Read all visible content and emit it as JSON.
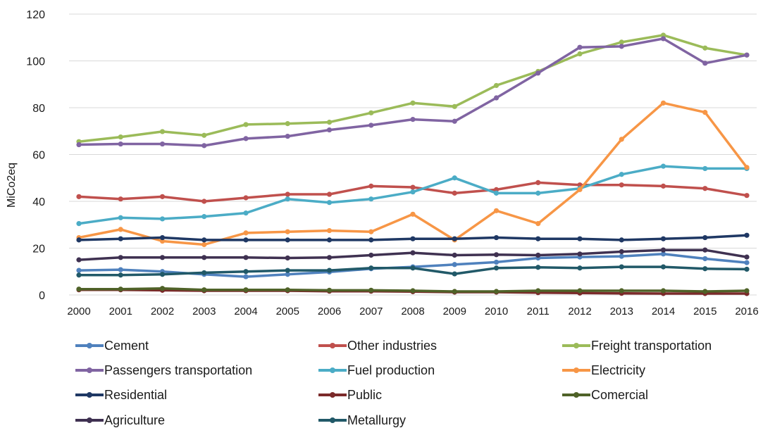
{
  "chart_data": {
    "type": "line",
    "title": "",
    "xlabel": "",
    "ylabel": "MiCo2eq",
    "ylim": [
      0,
      120
    ],
    "yticks": [
      0,
      20,
      40,
      60,
      80,
      100,
      120
    ],
    "grid": "horizontal",
    "legend_position": "bottom",
    "x": [
      "2000",
      "2001",
      "2002",
      "2003",
      "2004",
      "2005",
      "2006",
      "2007",
      "2008",
      "2009",
      "2010",
      "2011",
      "2012",
      "2013",
      "2014",
      "2015",
      "2016"
    ],
    "series": [
      {
        "name": "Cement",
        "color": "#4f81bd",
        "values": [
          10.5,
          10.8,
          10.0,
          8.8,
          7.8,
          8.8,
          9.8,
          11.2,
          12.0,
          13.0,
          14.0,
          15.8,
          16.2,
          16.5,
          17.5,
          15.5,
          13.8
        ]
      },
      {
        "name": "Other industries",
        "color": "#c0504d",
        "values": [
          42,
          41,
          42,
          40,
          41.5,
          43,
          43,
          46.5,
          46,
          43.5,
          45,
          48,
          47,
          47,
          46.5,
          45.5,
          42.5
        ]
      },
      {
        "name": "Freight transportation",
        "color": "#9bbb59",
        "values": [
          65.5,
          67.5,
          69.8,
          68.2,
          72.8,
          73.2,
          73.8,
          77.8,
          82,
          80.5,
          89.5,
          95.5,
          103,
          108,
          111,
          105.5,
          102.5
        ]
      },
      {
        "name": "Passengers transportation",
        "color": "#8064a2",
        "values": [
          64.2,
          64.5,
          64.5,
          63.8,
          66.8,
          67.8,
          70.5,
          72.5,
          75,
          74.2,
          84.2,
          94.8,
          105.8,
          106.2,
          109.5,
          99,
          102.5
        ]
      },
      {
        "name": "Fuel production",
        "color": "#4bacc6",
        "values": [
          30.5,
          33,
          32.5,
          33.5,
          35,
          41,
          39.5,
          41,
          44,
          50,
          43.5,
          43.5,
          45.5,
          51.5,
          55,
          54,
          54
        ]
      },
      {
        "name": "Electricity",
        "color": "#f79646",
        "values": [
          24.5,
          28,
          23,
          21.5,
          26.5,
          27,
          27.5,
          27,
          34.5,
          23.5,
          36,
          30.5,
          45,
          66.5,
          82,
          78,
          54.5
        ]
      },
      {
        "name": "Residential",
        "color": "#1f3864",
        "values": [
          23.5,
          24,
          24.5,
          23.5,
          23.5,
          23.5,
          23.5,
          23.5,
          24,
          24,
          24.5,
          24,
          24,
          23.5,
          24,
          24.5,
          25.5
        ]
      },
      {
        "name": "Public",
        "color": "#7b2a2a",
        "values": [
          2.2,
          2.2,
          2.0,
          1.8,
          1.8,
          1.8,
          1.6,
          1.6,
          1.4,
          1.2,
          1.2,
          1.0,
          0.8,
          0.7,
          0.6,
          0.6,
          0.6
        ]
      },
      {
        "name": "Comercial",
        "color": "#4f6228",
        "values": [
          2.5,
          2.5,
          2.8,
          2.2,
          2.2,
          2.2,
          2.0,
          2.0,
          1.8,
          1.5,
          1.5,
          1.8,
          1.8,
          1.8,
          1.8,
          1.5,
          1.8
        ]
      },
      {
        "name": "Agriculture",
        "color": "#3f3151",
        "values": [
          15,
          16,
          16,
          16,
          16,
          15.8,
          16,
          17,
          18,
          17,
          17.2,
          17,
          17.5,
          18.5,
          19.2,
          19.2,
          16.2
        ]
      },
      {
        "name": "Metallurgy",
        "color": "#215968",
        "values": [
          8.5,
          8.5,
          8.8,
          9.5,
          10,
          10.5,
          10.5,
          11.5,
          11.5,
          9,
          11.5,
          11.8,
          11.5,
          12,
          12,
          11.2,
          11
        ]
      }
    ]
  }
}
